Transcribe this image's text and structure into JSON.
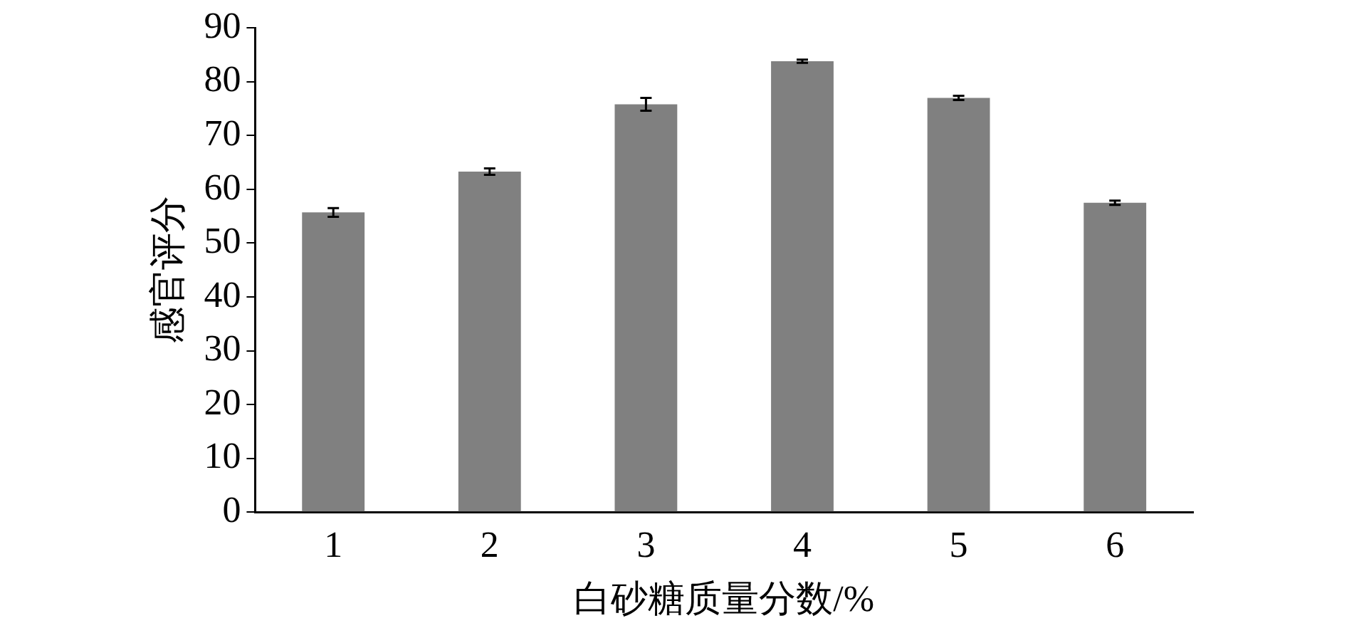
{
  "chart_data": {
    "type": "bar",
    "xlabel": "白砂糖质量分数/%",
    "ylabel": "感官评分",
    "categories": [
      "1",
      "2",
      "3",
      "4",
      "5",
      "6"
    ],
    "values": [
      55.7,
      63.3,
      75.8,
      83.8,
      77.0,
      57.5
    ],
    "errors": [
      0.8,
      0.6,
      1.2,
      0.3,
      0.4,
      0.4
    ],
    "color": "#808080",
    "ylim": [
      0,
      90
    ],
    "yticks": [
      0,
      10,
      20,
      30,
      40,
      50,
      60,
      70,
      80,
      90
    ],
    "grid": false,
    "legend": false
  }
}
